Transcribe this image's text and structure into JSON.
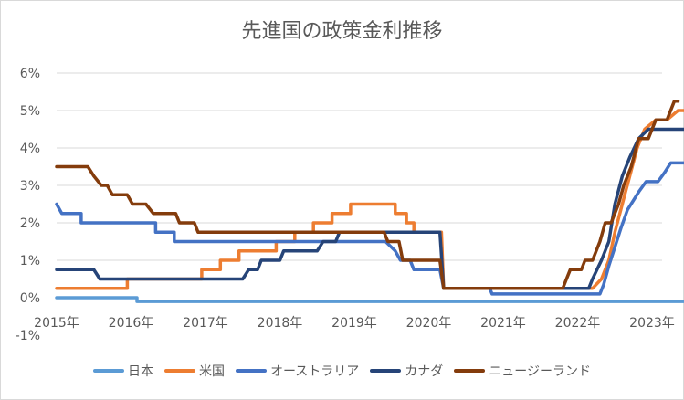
{
  "chart_data": {
    "type": "line",
    "title": "先進国の政策金利推移",
    "xlabel": "",
    "ylabel": "",
    "ylim": [
      -1,
      6
    ],
    "xlim": [
      2015.0,
      2023.6
    ],
    "y_ticks": [
      "-1%",
      "0%",
      "1%",
      "2%",
      "3%",
      "4%",
      "5%",
      "6%"
    ],
    "x_ticks": [
      "2015年",
      "2016年",
      "2017年",
      "2018年",
      "2019年",
      "2020年",
      "2021年",
      "2022年",
      "2023年"
    ],
    "grid": "horizontal",
    "legend_position": "bottom",
    "series": [
      {
        "name": "日本",
        "color": "#5B9BD5",
        "points": [
          [
            2015.0,
            0.0
          ],
          [
            2016.08,
            0.0
          ],
          [
            2016.08,
            -0.1
          ],
          [
            2023.58,
            -0.1
          ]
        ]
      },
      {
        "name": "米国",
        "color": "#ED7D31",
        "points": [
          [
            2015.0,
            0.25
          ],
          [
            2015.95,
            0.25
          ],
          [
            2015.95,
            0.5
          ],
          [
            2016.95,
            0.5
          ],
          [
            2016.95,
            0.75
          ],
          [
            2017.2,
            0.75
          ],
          [
            2017.2,
            1.0
          ],
          [
            2017.45,
            1.0
          ],
          [
            2017.45,
            1.25
          ],
          [
            2017.95,
            1.25
          ],
          [
            2017.95,
            1.5
          ],
          [
            2018.2,
            1.5
          ],
          [
            2018.2,
            1.75
          ],
          [
            2018.45,
            1.75
          ],
          [
            2018.45,
            2.0
          ],
          [
            2018.7,
            2.0
          ],
          [
            2018.7,
            2.25
          ],
          [
            2018.95,
            2.25
          ],
          [
            2018.95,
            2.5
          ],
          [
            2019.55,
            2.5
          ],
          [
            2019.55,
            2.25
          ],
          [
            2019.7,
            2.25
          ],
          [
            2019.7,
            2.0
          ],
          [
            2019.8,
            2.0
          ],
          [
            2019.8,
            1.75
          ],
          [
            2020.17,
            1.75
          ],
          [
            2020.2,
            0.25
          ],
          [
            2021.05,
            0.25
          ],
          [
            2022.2,
            0.25
          ],
          [
            2022.32,
            0.5
          ],
          [
            2022.42,
            1.0
          ],
          [
            2022.5,
            1.75
          ],
          [
            2022.6,
            2.5
          ],
          [
            2022.7,
            3.25
          ],
          [
            2022.8,
            4.0
          ],
          [
            2022.9,
            4.5
          ],
          [
            2023.05,
            4.75
          ],
          [
            2023.2,
            4.75
          ],
          [
            2023.35,
            5.0
          ],
          [
            2023.58,
            5.0
          ]
        ]
      },
      {
        "name": "オーストラリア",
        "color": "#4472C4",
        "points": [
          [
            2015.0,
            2.5
          ],
          [
            2015.07,
            2.25
          ],
          [
            2015.33,
            2.25
          ],
          [
            2015.33,
            2.0
          ],
          [
            2016.33,
            2.0
          ],
          [
            2016.33,
            1.75
          ],
          [
            2016.58,
            1.75
          ],
          [
            2016.58,
            1.5
          ],
          [
            2019.42,
            1.5
          ],
          [
            2019.55,
            1.25
          ],
          [
            2019.62,
            1.0
          ],
          [
            2019.75,
            1.0
          ],
          [
            2019.8,
            0.75
          ],
          [
            2020.15,
            0.75
          ],
          [
            2020.2,
            0.25
          ],
          [
            2020.82,
            0.25
          ],
          [
            2020.85,
            0.1
          ],
          [
            2022.3,
            0.1
          ],
          [
            2022.35,
            0.35
          ],
          [
            2022.42,
            0.85
          ],
          [
            2022.5,
            1.35
          ],
          [
            2022.58,
            1.85
          ],
          [
            2022.67,
            2.35
          ],
          [
            2022.75,
            2.6
          ],
          [
            2022.83,
            2.85
          ],
          [
            2022.92,
            3.1
          ],
          [
            2023.08,
            3.1
          ],
          [
            2023.17,
            3.35
          ],
          [
            2023.25,
            3.6
          ],
          [
            2023.58,
            3.6
          ]
        ]
      },
      {
        "name": "カナダ",
        "color": "#264478",
        "points": [
          [
            2015.0,
            0.75
          ],
          [
            2015.5,
            0.75
          ],
          [
            2015.58,
            0.5
          ],
          [
            2017.5,
            0.5
          ],
          [
            2017.58,
            0.75
          ],
          [
            2017.7,
            0.75
          ],
          [
            2017.75,
            1.0
          ],
          [
            2018.0,
            1.0
          ],
          [
            2018.05,
            1.25
          ],
          [
            2018.5,
            1.25
          ],
          [
            2018.58,
            1.5
          ],
          [
            2018.75,
            1.5
          ],
          [
            2018.8,
            1.75
          ],
          [
            2020.15,
            1.75
          ],
          [
            2020.2,
            0.25
          ],
          [
            2022.15,
            0.25
          ],
          [
            2022.2,
            0.5
          ],
          [
            2022.32,
            1.0
          ],
          [
            2022.42,
            1.5
          ],
          [
            2022.5,
            2.5
          ],
          [
            2022.6,
            3.25
          ],
          [
            2022.7,
            3.75
          ],
          [
            2022.82,
            4.25
          ],
          [
            2022.95,
            4.5
          ],
          [
            2023.58,
            4.5
          ]
        ]
      },
      {
        "name": "ニュージーランド",
        "color": "#843C0C",
        "points": [
          [
            2015.0,
            3.5
          ],
          [
            2015.42,
            3.5
          ],
          [
            2015.5,
            3.25
          ],
          [
            2015.6,
            3.0
          ],
          [
            2015.68,
            3.0
          ],
          [
            2015.75,
            2.75
          ],
          [
            2015.95,
            2.75
          ],
          [
            2016.02,
            2.5
          ],
          [
            2016.2,
            2.5
          ],
          [
            2016.3,
            2.25
          ],
          [
            2016.6,
            2.25
          ],
          [
            2016.65,
            2.0
          ],
          [
            2016.85,
            2.0
          ],
          [
            2016.9,
            1.75
          ],
          [
            2019.4,
            1.75
          ],
          [
            2019.45,
            1.5
          ],
          [
            2019.6,
            1.5
          ],
          [
            2019.65,
            1.0
          ],
          [
            2020.15,
            1.0
          ],
          [
            2020.2,
            0.25
          ],
          [
            2021.8,
            0.25
          ],
          [
            2021.85,
            0.5
          ],
          [
            2021.9,
            0.75
          ],
          [
            2022.05,
            0.75
          ],
          [
            2022.1,
            1.0
          ],
          [
            2022.2,
            1.0
          ],
          [
            2022.3,
            1.5
          ],
          [
            2022.37,
            2.0
          ],
          [
            2022.45,
            2.0
          ],
          [
            2022.55,
            2.5
          ],
          [
            2022.62,
            3.0
          ],
          [
            2022.72,
            3.5
          ],
          [
            2022.82,
            4.25
          ],
          [
            2022.95,
            4.25
          ],
          [
            2023.05,
            4.75
          ],
          [
            2023.2,
            4.75
          ],
          [
            2023.3,
            5.25
          ],
          [
            2023.35,
            5.25
          ]
        ]
      }
    ]
  }
}
